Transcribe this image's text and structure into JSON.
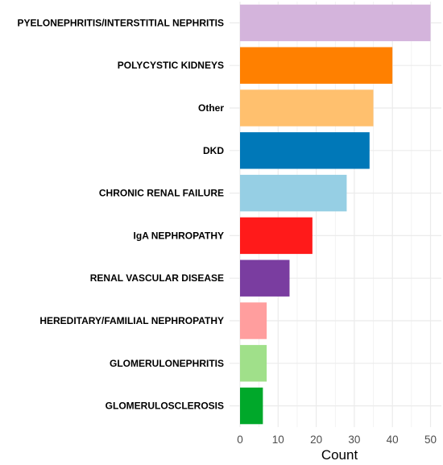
{
  "chart_data": {
    "type": "bar",
    "orientation": "horizontal",
    "categories": [
      "PYELONEPHRITIS/INTERSTITIAL NEPHRITIS",
      "POLYCYSTIC KIDNEYS",
      "Other",
      "DKD",
      "CHRONIC RENAL FAILURE",
      "IgA NEPHROPATHY",
      "RENAL VASCULAR DISEASE",
      "HEREDITARY/FAMILIAL NEPHROPATHY",
      "GLOMERULONEPHRITIS",
      "GLOMERULOSCLEROSIS"
    ],
    "values": [
      50,
      40,
      35,
      34,
      28,
      19,
      13,
      7,
      7,
      6
    ],
    "colors": [
      "#d4b4dc",
      "#ff8000",
      "#ffc06e",
      "#0078b8",
      "#96cfe4",
      "#ff1a1a",
      "#7a3da0",
      "#ff9e9e",
      "#a0e08a",
      "#00a82a"
    ],
    "title": "",
    "xlabel": "Count",
    "ylabel": "",
    "xlim": [
      0,
      51
    ],
    "xticks": [
      0,
      10,
      20,
      30,
      40,
      50
    ],
    "grid": true,
    "legend": "none",
    "background": "#ffffff",
    "gridColor": "#ebebeb"
  }
}
